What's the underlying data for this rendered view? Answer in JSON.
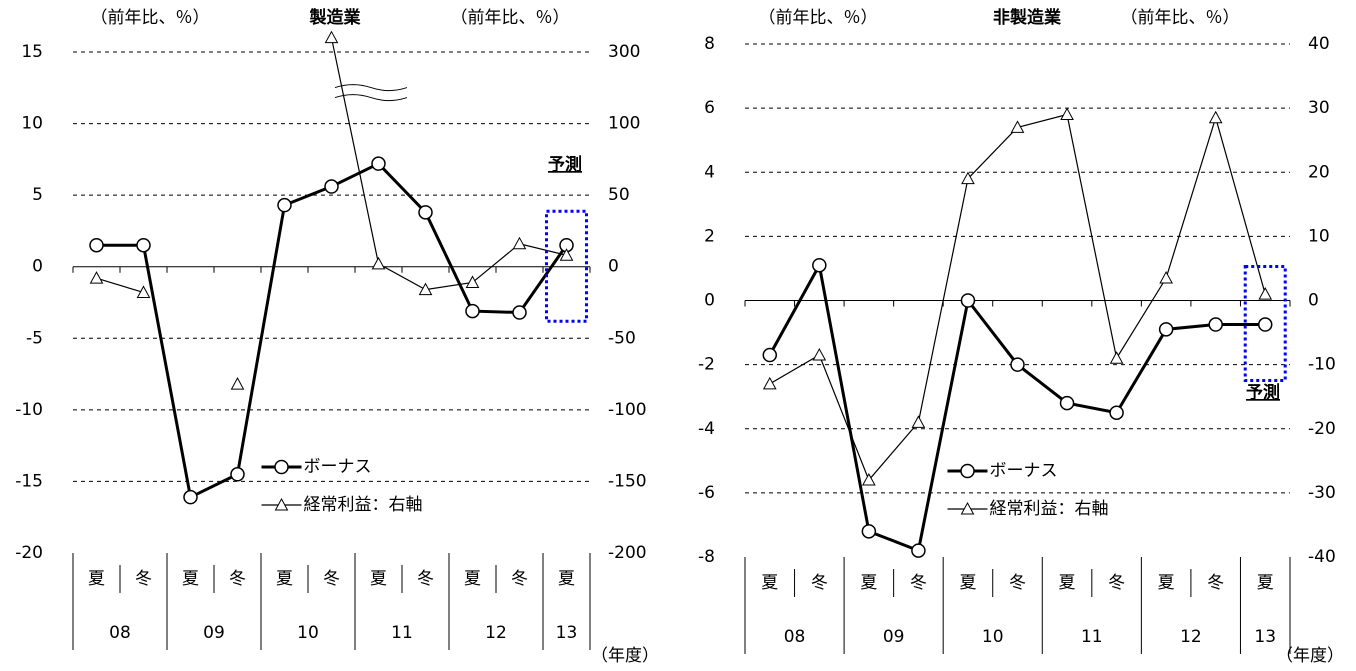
{
  "chart_data": [
    {
      "type": "line",
      "title": "製造業",
      "y_label": "（前年比、％）",
      "y2_label": "（前年比、％）",
      "x_label": "（年度）",
      "categories": [
        "夏",
        "冬",
        "夏",
        "冬",
        "夏",
        "冬",
        "夏",
        "冬",
        "夏",
        "冬",
        "夏"
      ],
      "year_labels": [
        "08",
        "09",
        "10",
        "11",
        "12",
        "13"
      ],
      "ylim": [
        -20,
        15
      ],
      "yticks": [
        -20,
        -15,
        -10,
        -5,
        0,
        5,
        10,
        15
      ],
      "y2lim": [
        -200,
        300
      ],
      "y2ticks": [
        -200,
        -150,
        -100,
        -50,
        0,
        50,
        100,
        300
      ],
      "y2_axis_break": {
        "from": 100,
        "to": 300
      },
      "y2_negative_tick_color": "#ff0000",
      "grid": true,
      "legend_position": "lower center",
      "annotation": "予測",
      "annotation_color": "#0000ff",
      "series": [
        {
          "name": "ボーナス",
          "color": "#000000",
          "marker": "circle",
          "values": [
            1.5,
            1.5,
            -16.1,
            -14.5,
            4.3,
            5.6,
            7.2,
            3.8,
            -3.1,
            -3.2,
            1.5
          ]
        },
        {
          "name": "経常利益：右軸",
          "color": "#000000",
          "marker": "triangle",
          "axis": "y2",
          "values": [
            -8,
            -18,
            null,
            -82,
            null,
            340,
            2,
            -16,
            -11,
            16,
            8
          ]
        }
      ]
    },
    {
      "type": "line",
      "title": "非製造業",
      "y_label": "（前年比、％）",
      "y2_label": "（前年比、％）",
      "x_label": "（年度）",
      "categories": [
        "夏",
        "冬",
        "夏",
        "冬",
        "夏",
        "冬",
        "夏",
        "冬",
        "夏",
        "冬",
        "夏"
      ],
      "year_labels": [
        "08",
        "09",
        "10",
        "11",
        "12",
        "13"
      ],
      "ylim": [
        -8,
        8
      ],
      "yticks": [
        -8,
        -6,
        -4,
        -2,
        0,
        2,
        4,
        6,
        8
      ],
      "y2lim": [
        -40,
        40
      ],
      "y2ticks": [
        -40,
        -30,
        -20,
        -10,
        0,
        10,
        20,
        30,
        40
      ],
      "y2_negative_tick_color": "#ff0000",
      "grid": true,
      "legend_position": "lower center",
      "annotation": "予測",
      "annotation_color": "#0000ff",
      "series": [
        {
          "name": "ボーナス",
          "color": "#000000",
          "marker": "circle",
          "values": [
            -1.7,
            1.1,
            -7.2,
            -7.8,
            0,
            -2.0,
            -3.2,
            -3.5,
            -0.9,
            -0.75,
            -0.75
          ]
        },
        {
          "name": "経常利益：右軸",
          "color": "#000000",
          "marker": "triangle",
          "axis": "y2",
          "values": [
            -13,
            -8.5,
            -28,
            -19,
            19,
            27,
            29,
            -9,
            3.5,
            28.5,
            1
          ]
        }
      ]
    }
  ]
}
